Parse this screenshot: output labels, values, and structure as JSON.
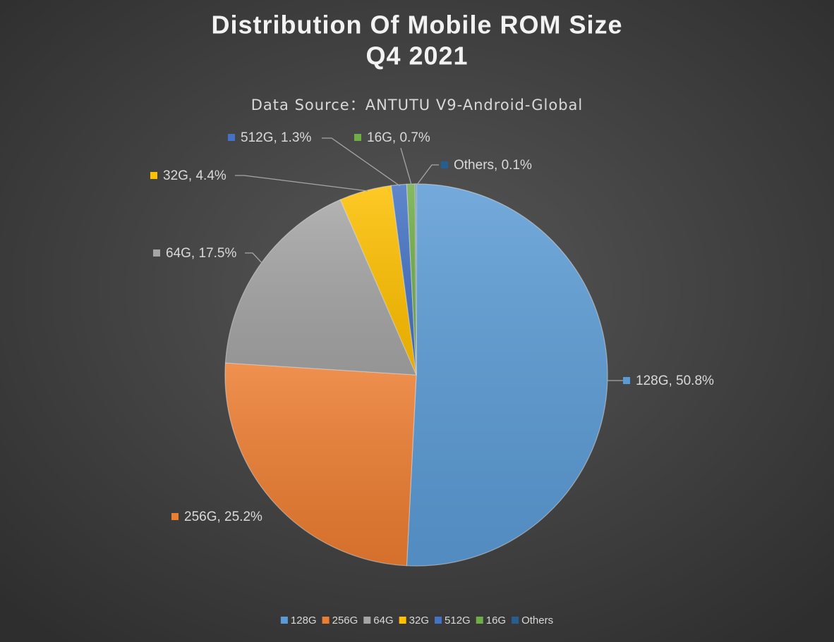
{
  "chart_data": {
    "type": "pie",
    "title": [
      "Distribution Of Mobile ROM Size",
      "Q4 2021"
    ],
    "subtitle": "Data Source：ANTUTU V9-Android-Global",
    "categories": [
      "128G",
      "256G",
      "64G",
      "32G",
      "512G",
      "16G",
      "Others"
    ],
    "values": [
      50.8,
      25.2,
      17.5,
      4.4,
      1.3,
      0.7,
      0.1
    ],
    "value_labels": [
      "128G, 50.8%",
      "256G, 25.2%",
      "64G, 17.5%",
      "32G, 4.4%",
      "512G, 1.3%",
      "16G, 0.7%",
      "Others, 0.1%"
    ],
    "colors": [
      "#5b9bd5",
      "#ed7d31",
      "#a5a5a5",
      "#ffc000",
      "#4472c4",
      "#70ad47",
      "#255e91"
    ],
    "legend": "bottom"
  }
}
